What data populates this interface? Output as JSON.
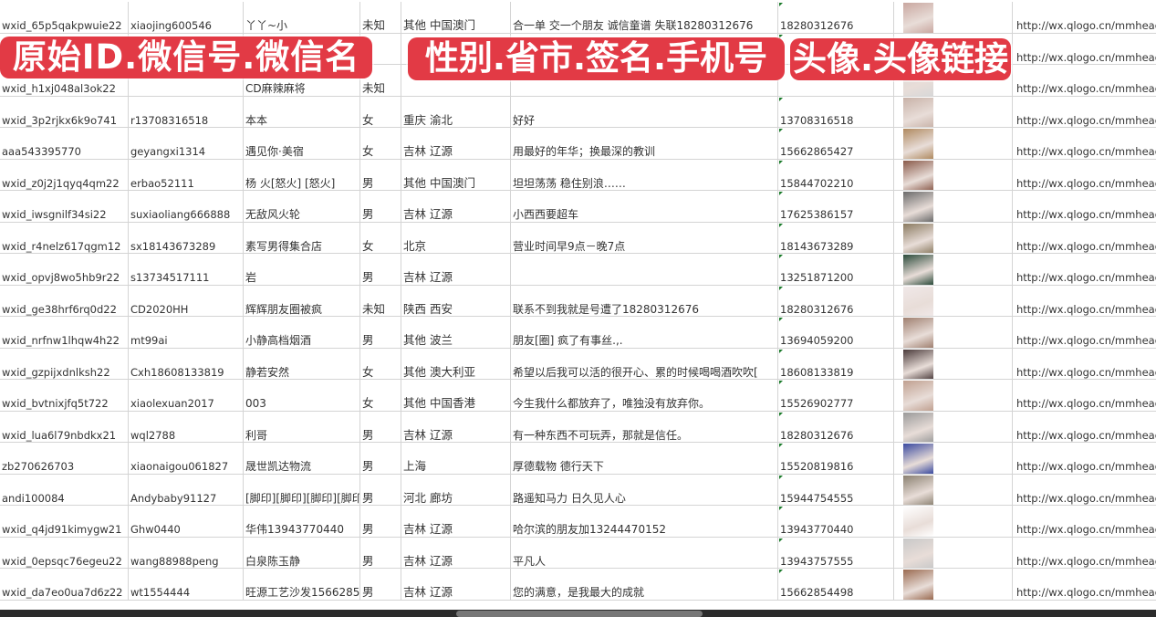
{
  "banners": {
    "left": "原始ID.微信号.微信名",
    "middle": "性别.省市.签名.手机号",
    "right": "头像.头像链接"
  },
  "avatar_colors": [
    "#c9a7a0",
    "#8a8fb0",
    "#d8d8d8",
    "#c8b2a8",
    "#b08a60",
    "#8a5a4a",
    "#6a6a6a",
    "#8a7a60",
    "#2a4a3a",
    "#f0e8e8",
    "#a08070",
    "#4a3a3a",
    "#c0a090",
    "#9a9a9a",
    "#3a4aa0",
    "#8a8070",
    "#ffffff",
    "#c8c8c8",
    "#9a6a50"
  ],
  "rows": [
    {
      "id": "wxid_65p5qakpwuie22",
      "wechat": "xiaojing600546",
      "name": "丫丫~小",
      "gender": "未知",
      "region": "其他 中国澳门",
      "signature": "合一单 交一个朋友 诚信童谱 失联18280312676",
      "phone": "18280312676",
      "link": "http://wx.qlogo.cn/mmhead"
    },
    {
      "id": "",
      "wechat": "",
      "name": "",
      "gender": "",
      "region": "",
      "signature": "",
      "phone": "",
      "link": "http://wx.qlogo.cn/mmhead"
    },
    {
      "id": "wxid_h1xj048al3ok22",
      "wechat": "",
      "name": "CD麻辣麻将",
      "gender": "未知",
      "region": "",
      "signature": "",
      "phone": "",
      "link": "http://wx.qlogo.cn/mmhead"
    },
    {
      "id": "wxid_3p2rjkx6k9o741",
      "wechat": "r13708316518",
      "name": "本本",
      "gender": "女",
      "region": "重庆 渝北",
      "signature": "好好",
      "phone": "13708316518",
      "link": "http://wx.qlogo.cn/mmhead"
    },
    {
      "id": "aaa543395770",
      "wechat": "geyangxi1314",
      "name": "遇见你·美宿",
      "gender": "女",
      "region": "吉林 辽源",
      "signature": "用最好的年华；换最深的教训",
      "phone": "15662865427",
      "link": "http://wx.qlogo.cn/mmhead"
    },
    {
      "id": "wxid_z0j2j1qyq4qm22",
      "wechat": "erbao52111",
      "name": "杨 火[怒火] [怒火]",
      "gender": "男",
      "region": "其他 中国澳门",
      "signature": "坦坦荡荡 稳住别浪……",
      "phone": "15844702210",
      "link": "http://wx.qlogo.cn/mmhead"
    },
    {
      "id": "wxid_iwsgnilf34si22",
      "wechat": "suxiaoliang666888",
      "name": "无敌风火轮",
      "gender": "男",
      "region": "吉林 辽源",
      "signature": "小西西要超车",
      "phone": "17625386157",
      "link": "http://wx.qlogo.cn/mmhead"
    },
    {
      "id": "wxid_r4nelz617qgm12",
      "wechat": "sx18143673289",
      "name": "素写男得集合店",
      "gender": "女",
      "region": "北京",
      "signature": "营业时间早9点－晚7点",
      "phone": "18143673289",
      "link": "http://wx.qlogo.cn/mmhead"
    },
    {
      "id": "wxid_opvj8wo5hb9r22",
      "wechat": "s13734517111",
      "name": "岩",
      "gender": "男",
      "region": "吉林 辽源",
      "signature": "",
      "phone": "13251871200",
      "link": "http://wx.qlogo.cn/mmhead"
    },
    {
      "id": "wxid_ge38hrf6rq0d22",
      "wechat": "CD2020HH",
      "name": "辉辉朋友圈被疯",
      "gender": "未知",
      "region": "陕西 西安",
      "signature": "联系不到我就是号遭了18280312676",
      "phone": "18280312676",
      "link": "http://wx.qlogo.cn/mmhead"
    },
    {
      "id": "wxid_nrfnw1lhqw4h22",
      "wechat": "mt99ai",
      "name": "小静高档烟酒",
      "gender": "男",
      "region": "其他 波兰",
      "signature": "朋友[圈] 疯了有事丝.,.",
      "phone": "13694059200",
      "link": "http://wx.qlogo.cn/mmhead"
    },
    {
      "id": "wxid_gzpijxdnlksh22",
      "wechat": "Cxh18608133819",
      "name": "静若安然",
      "gender": "女",
      "region": "其他 澳大利亚",
      "signature": "希望以后我可以活的很开心、累的时候喝喝酒吹吹[",
      "phone": "18608133819",
      "link": "http://wx.qlogo.cn/mmhead"
    },
    {
      "id": "wxid_bvtnixjfq5t722",
      "wechat": "xiaolexuan2017",
      "name": "003",
      "gender": "女",
      "region": "其他 中国香港",
      "signature": "今生我什么都放弃了，唯独没有放弃你。",
      "phone": "15526902777",
      "link": "http://wx.qlogo.cn/mmhead"
    },
    {
      "id": "wxid_lua6l79nbdkx21",
      "wechat": "wql2788",
      "name": "利哥",
      "gender": "男",
      "region": "吉林 辽源",
      "signature": "有一种东西不可玩弄，那就是信任。",
      "phone": "18280312676",
      "link": "http://wx.qlogo.cn/mmhead"
    },
    {
      "id": "zb270626703",
      "wechat": "xiaonaigou061827",
      "name": "晟世凯达物流",
      "gender": "男",
      "region": "上海",
      "signature": "厚德载物 德行天下",
      "phone": "15520819816",
      "link": "http://wx.qlogo.cn/mmhead"
    },
    {
      "id": "andi100084",
      "wechat": "Andybaby91127",
      "name": "[脚印][脚印][脚印][脚印]",
      "gender": "男",
      "region": "河北 廊坊",
      "signature": "路遥知马力 日久见人心",
      "phone": "15944754555",
      "link": "http://wx.qlogo.cn/mmhead"
    },
    {
      "id": "wxid_q4jd91kimygw21",
      "wechat": "Ghw0440",
      "name": "华伟13943770440",
      "gender": "男",
      "region": "吉林 辽源",
      "signature": "哈尔滨的朋友加13244470152",
      "phone": "13943770440",
      "link": "http://wx.qlogo.cn/mmhead"
    },
    {
      "id": "wxid_0epsqc76egeu22",
      "wechat": "wang88988peng",
      "name": "白泉陈玉静",
      "gender": "男",
      "region": "吉林 辽源",
      "signature": "平凡人",
      "phone": "13943757555",
      "link": "http://wx.qlogo.cn/mmhead"
    },
    {
      "id": "wxid_da7eo0ua7d6z22",
      "wechat": "wt1554444",
      "name": "旺源工艺沙发15662854",
      "gender": "男",
      "region": "吉林 辽源",
      "signature": "您的满意，是我最大的成就",
      "phone": "15662854498",
      "link": "http://wx.qlogo.cn/mmhead"
    }
  ]
}
